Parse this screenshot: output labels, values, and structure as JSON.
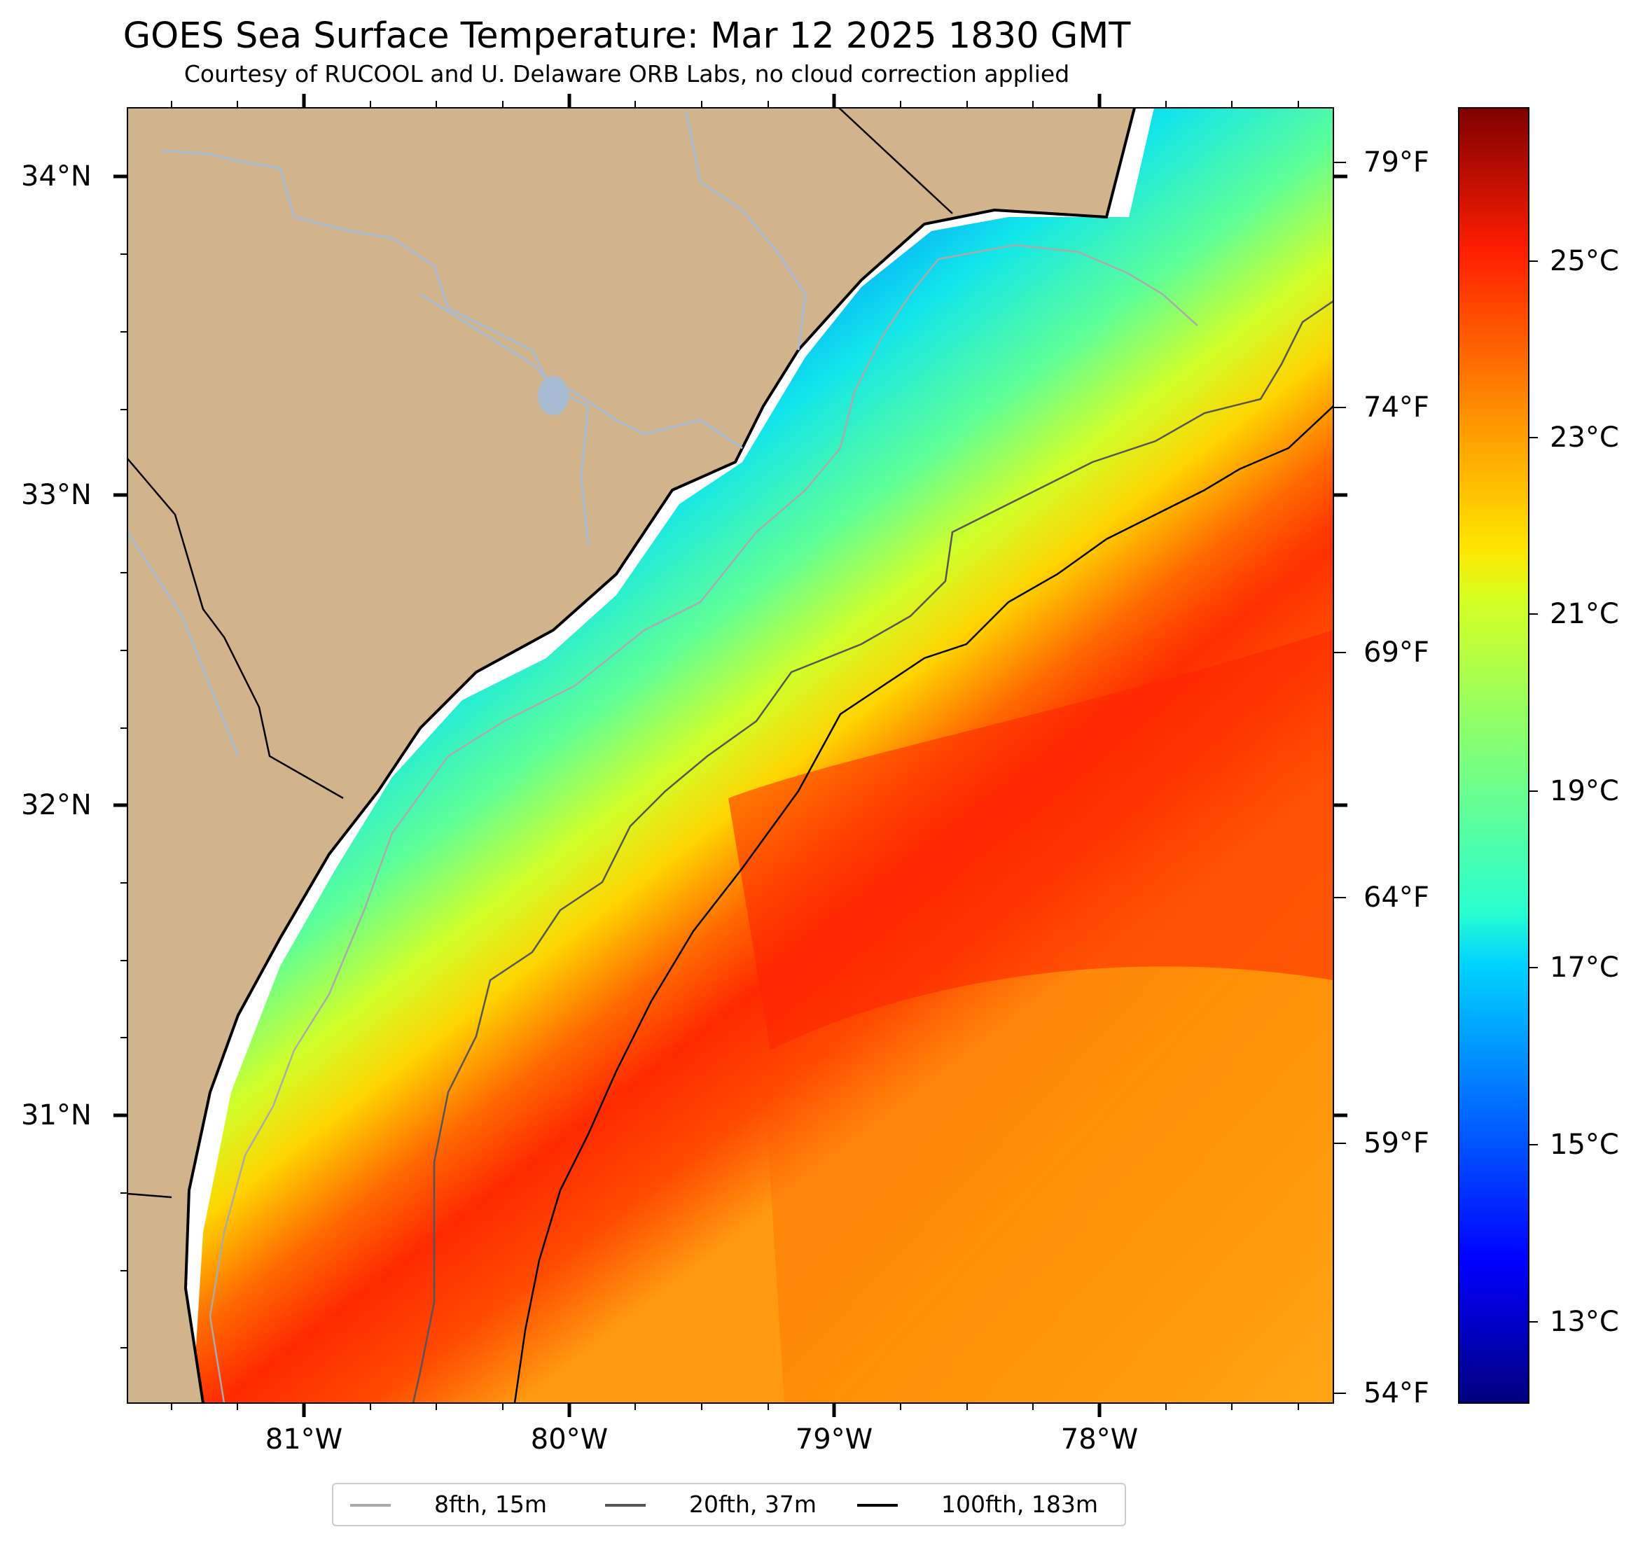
{
  "title": "GOES Sea Surface Temperature: Mar 12 2025 1830 GMT",
  "subtitle": "Courtesy of RUCOOL and U. Delaware ORB Labs, no cloud correction applied",
  "map": {
    "lat_range": [
      30.2,
      34.2
    ],
    "lon_range": [
      -81.65,
      -77.1
    ],
    "latitude_labels": [
      "34°N",
      "33°N",
      "32°N",
      "31°N"
    ],
    "longitude_labels": [
      "81°W",
      "80°W",
      "79°W",
      "78°W"
    ],
    "land_color": "#d2b48c",
    "river_color": "#a7bbd3",
    "coastline_color": "#000000",
    "clipped_area_color": "#ffffff"
  },
  "colorbar": {
    "min_c": 12.2,
    "max_c": 26.8,
    "celsius_labels": [
      "25°C",
      "23°C",
      "21°C",
      "19°C",
      "17°C",
      "15°C",
      "13°C"
    ],
    "fahrenheit_labels": [
      "79°F",
      "74°F",
      "69°F",
      "64°F",
      "59°F",
      "54°F"
    ],
    "colormap": "jet"
  },
  "legend": {
    "items": [
      {
        "label": "8fth, 15m",
        "color": "#aaaaaa"
      },
      {
        "label": "20fth, 37m",
        "color": "#555555"
      },
      {
        "label": "100fth, 183m",
        "color": "#000000"
      }
    ]
  }
}
